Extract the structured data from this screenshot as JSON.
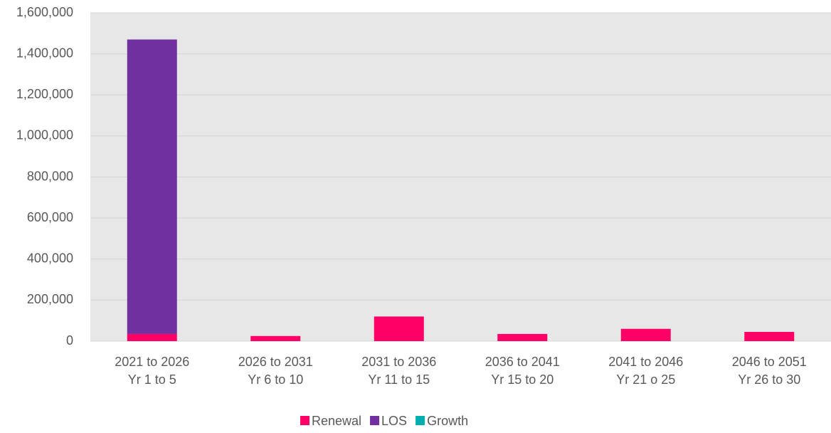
{
  "chart_data": {
    "type": "stacked_bar",
    "categories": [
      [
        "2021 to 2026",
        "Yr 1 to 5"
      ],
      [
        "2026 to 2031",
        "Yr 6 to 10"
      ],
      [
        "2031 to 2036",
        "Yr 11 to 15"
      ],
      [
        "2036 to 2041",
        "Yr 15 to 20"
      ],
      [
        "2041 to 2046",
        "Yr 21 o 25"
      ],
      [
        "2046 to 2051",
        "Yr 26 to 30"
      ]
    ],
    "series": [
      {
        "name": "Renewal",
        "color": "#ff0066",
        "values": [
          35000,
          25000,
          120000,
          35000,
          60000,
          45000
        ]
      },
      {
        "name": "LOS",
        "color": "#7030a0",
        "values": [
          1435000,
          0,
          0,
          0,
          0,
          0
        ]
      },
      {
        "name": "Growth",
        "color": "#00b0b0",
        "values": [
          0,
          0,
          0,
          0,
          0,
          0
        ]
      }
    ],
    "ylim": [
      0,
      1600000
    ],
    "yticks": [
      0,
      {
        "value": 200000,
        "label": "200,000"
      },
      {
        "value": 400000,
        "label": "400,000"
      },
      {
        "value": 600000,
        "label": "600,000"
      },
      {
        "value": 800000,
        "label": "800,000"
      },
      {
        "value": 1000000,
        "label": "1,000,000"
      },
      {
        "value": 1200000,
        "label": "1,200,000"
      },
      {
        "value": 1400000,
        "label": "1,400,000"
      },
      {
        "value": 1600000,
        "label": "1,600,000"
      }
    ],
    "grid": true,
    "legend": "bottom"
  }
}
